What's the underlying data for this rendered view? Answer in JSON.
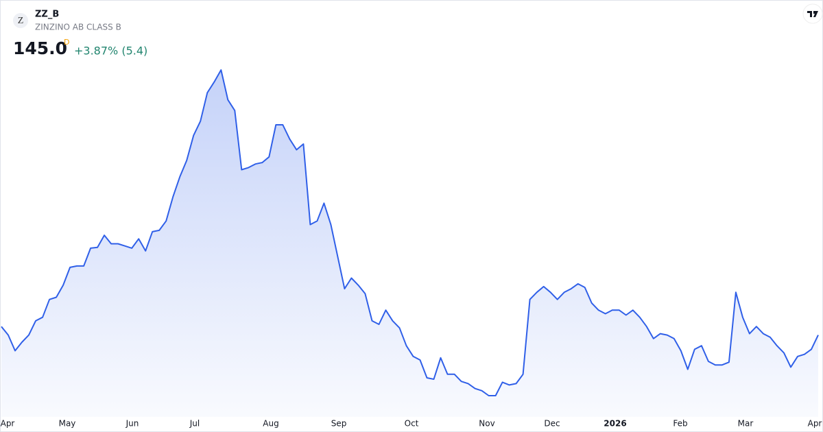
{
  "header": {
    "logo": "Z",
    "symbol": "ZZ_B",
    "name": "ZINZINO AB CLASS B",
    "price": "145.0",
    "interval": "D",
    "change": "+3.87% (5.4)"
  },
  "chart_data": {
    "type": "area",
    "color": "#2f5fe8",
    "x_labels": [
      "Apr",
      "May",
      "Jun",
      "Jul",
      "Aug",
      "Sep",
      "Oct",
      "Nov",
      "Dec",
      "2026",
      "Feb",
      "Mar",
      "Apr"
    ],
    "values": [
      149.3,
      145.0,
      137.1,
      141.4,
      145.0,
      152.2,
      154.0,
      163.0,
      164.1,
      170.2,
      179.2,
      179.9,
      179.9,
      188.9,
      189.3,
      195.4,
      191.1,
      191.1,
      190.0,
      188.9,
      193.6,
      187.5,
      197.2,
      197.9,
      202.6,
      214.8,
      224.9,
      233.2,
      245.8,
      253.0,
      267.4,
      272.8,
      278.9,
      263.8,
      258.4,
      228.5,
      229.6,
      231.4,
      232.1,
      235.0,
      251.2,
      251.2,
      244.0,
      238.6,
      241.5,
      200.8,
      202.6,
      211.6,
      200.8,
      184.6,
      168.4,
      173.8,
      170.2,
      165.9,
      152.2,
      150.4,
      157.6,
      152.2,
      148.6,
      139.6,
      134.2,
      132.4,
      123.4,
      122.7,
      133.5,
      125.2,
      125.2,
      121.6,
      120.5,
      118.0,
      116.9,
      114.4,
      114.4,
      121.2,
      119.8,
      120.5,
      125.2,
      163.0,
      166.6,
      169.5,
      166.6,
      163.0,
      166.6,
      168.4,
      170.9,
      169.1,
      161.2,
      157.6,
      155.8,
      157.6,
      157.6,
      155.1,
      157.6,
      154.0,
      149.3,
      143.2,
      145.7,
      145.0,
      143.2,
      137.1,
      127.7,
      137.8,
      139.6,
      131.7,
      129.9,
      129.9,
      131.3,
      166.6,
      154.0,
      145.7,
      149.3,
      145.7,
      143.9,
      139.6,
      136.0,
      128.8,
      134.2,
      135.3,
      137.8,
      145.0
    ]
  }
}
